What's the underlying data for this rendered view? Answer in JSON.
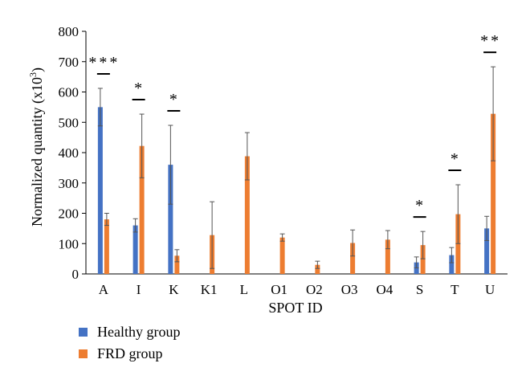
{
  "chart_data": {
    "type": "bar",
    "ylabel_main": "Normalized quantity (x10",
    "ylabel_sup": "3",
    "ylabel_end": ")",
    "xlabel": "SPOT ID",
    "ylim": [
      0,
      800
    ],
    "yticks": [
      "0",
      "100",
      "200",
      "300",
      "400",
      "500",
      "600",
      "700",
      "800"
    ],
    "categories": [
      "A",
      "I",
      "K",
      "K1",
      "L",
      "O1",
      "O2",
      "O3",
      "O4",
      "S",
      "T",
      "U"
    ],
    "series": [
      {
        "name": "Healthy group",
        "color": "#4472c4",
        "values": [
          550,
          160,
          360,
          0,
          0,
          0,
          0,
          0,
          0,
          38,
          62,
          150
        ],
        "errors": [
          62,
          22,
          130,
          0,
          0,
          0,
          0,
          0,
          0,
          18,
          25,
          40
        ]
      },
      {
        "name": "FRD group",
        "color": "#ed7d31",
        "values": [
          180,
          422,
          60,
          128,
          388,
          120,
          30,
          102,
          113,
          95,
          197,
          528
        ],
        "errors": [
          20,
          105,
          20,
          110,
          78,
          12,
          12,
          43,
          30,
          45,
          97,
          155
        ]
      }
    ],
    "significance": [
      {
        "category": "A",
        "label": "***"
      },
      {
        "category": "I",
        "label": "*"
      },
      {
        "category": "K",
        "label": "*"
      },
      {
        "category": "S",
        "label": "*"
      },
      {
        "category": "T",
        "label": "*"
      },
      {
        "category": "U",
        "label": "**"
      }
    ],
    "grid": false,
    "legend_position": "bottom-left"
  }
}
